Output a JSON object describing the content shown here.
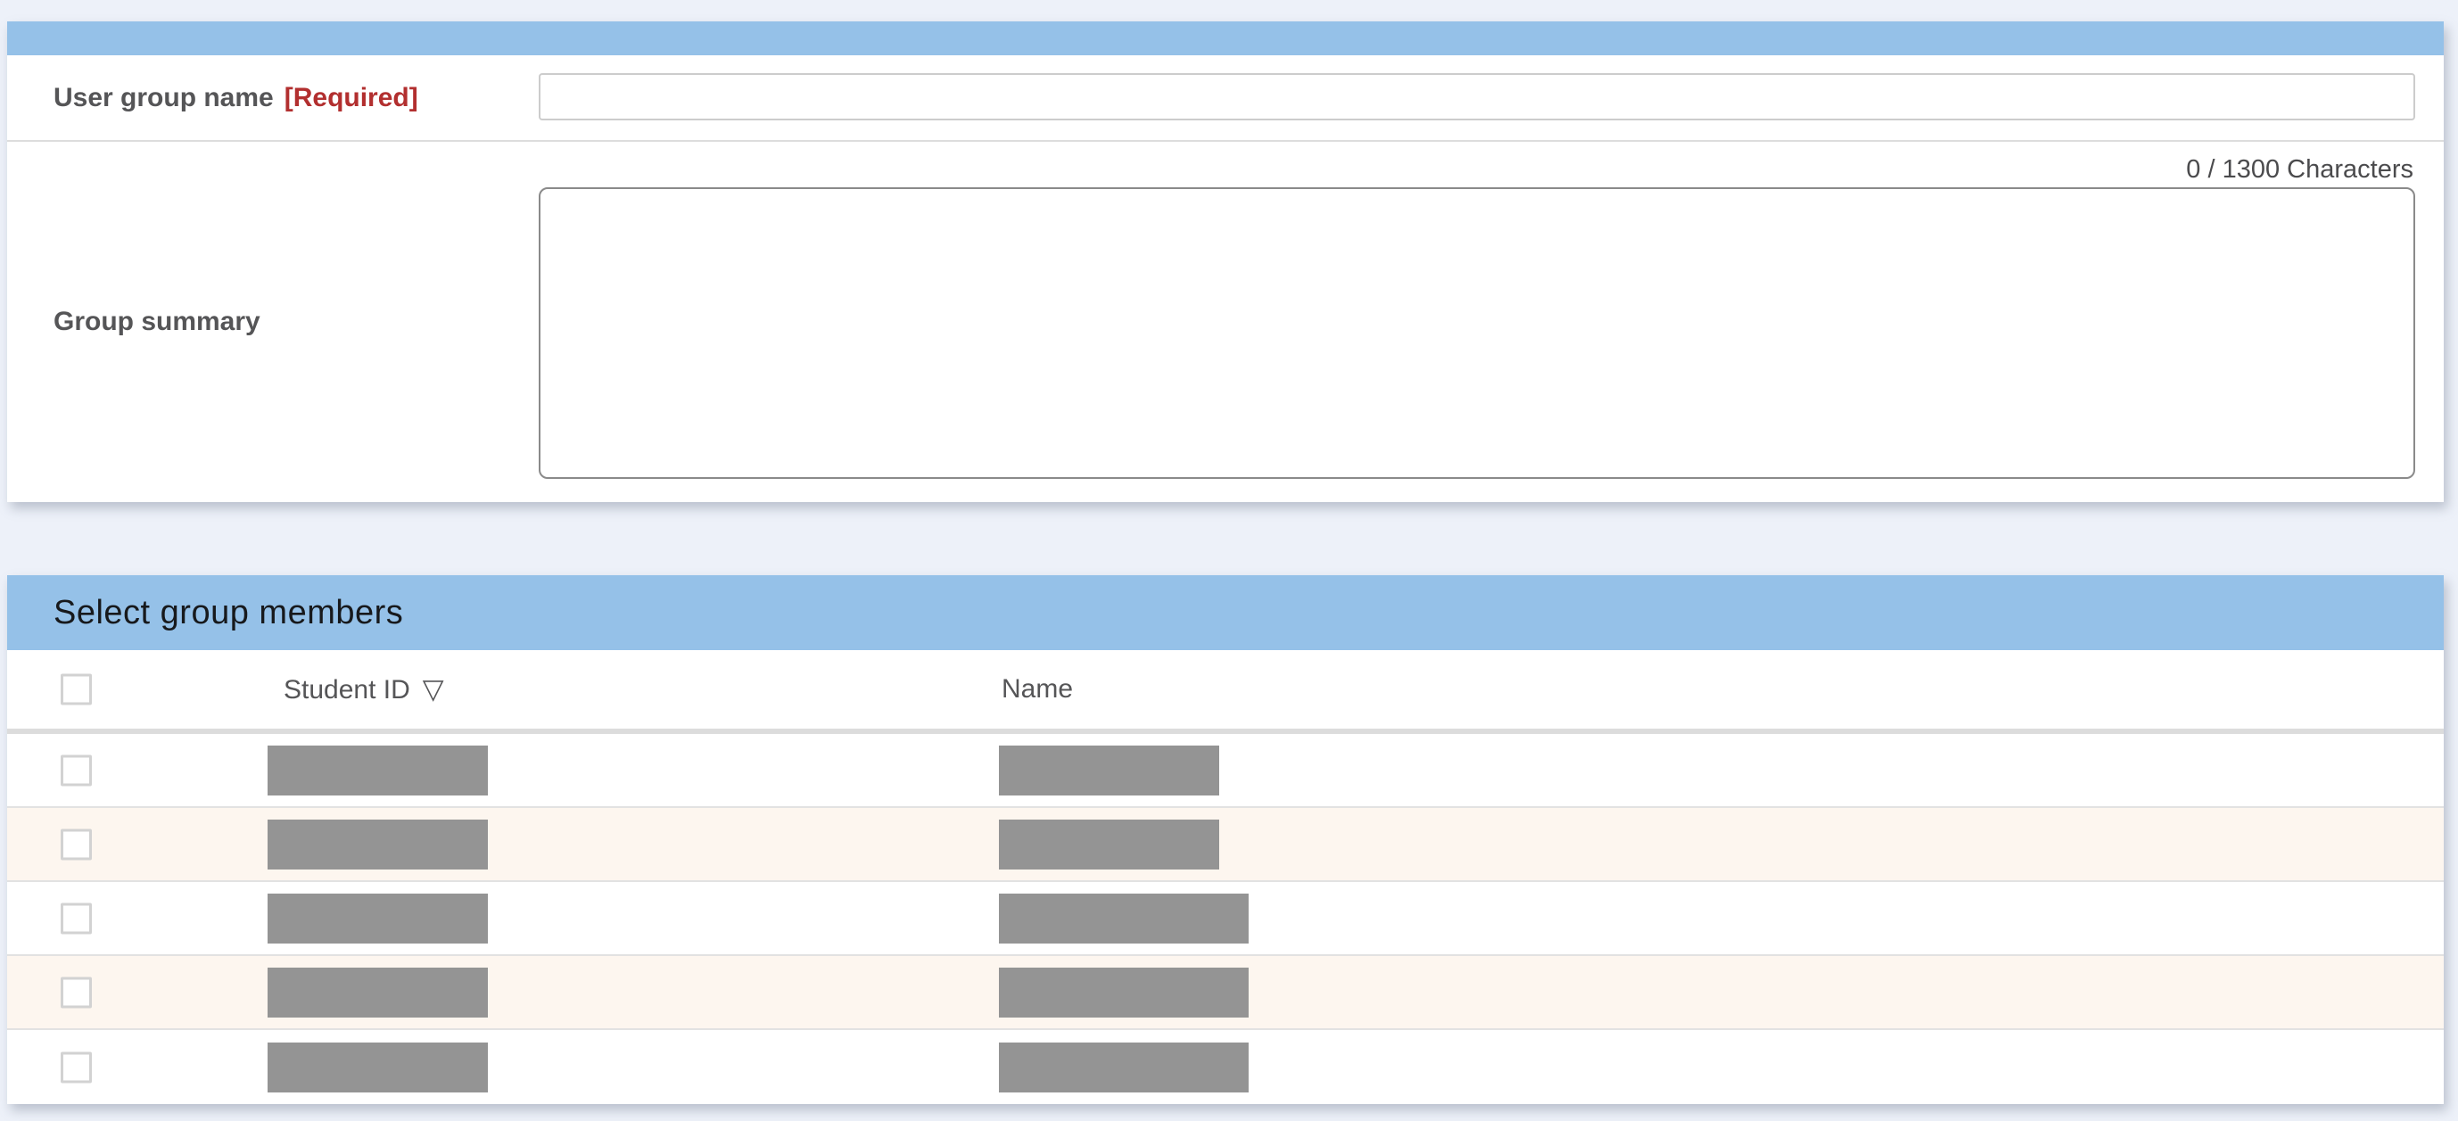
{
  "colors": {
    "page_background": "#edf1f9",
    "panel_header_blue": "#95c1e8",
    "required_red": "#b22f2f",
    "label_gray": "#555557",
    "row_alt_cream": "#fdf6ef",
    "mask_gray": "#949494"
  },
  "group_form": {
    "name_label": "User group name",
    "required_badge": "[Required]",
    "name_value": "",
    "summary_label": "Group summary",
    "summary_counter": "0 / 1300 Characters",
    "summary_value": ""
  },
  "members": {
    "title": "Select group members",
    "columns": {
      "student_id": "Student ID",
      "sort_icon": "▽",
      "name": "Name"
    },
    "rows": [
      {
        "student_id_masked": true,
        "name_masked": true,
        "name_mask": "normal"
      },
      {
        "student_id_masked": true,
        "name_masked": true,
        "name_mask": "normal"
      },
      {
        "student_id_masked": true,
        "name_masked": true,
        "name_mask": "wide"
      },
      {
        "student_id_masked": true,
        "name_masked": true,
        "name_mask": "wide"
      },
      {
        "student_id_masked": true,
        "name_masked": true,
        "name_mask": "wide"
      }
    ]
  }
}
